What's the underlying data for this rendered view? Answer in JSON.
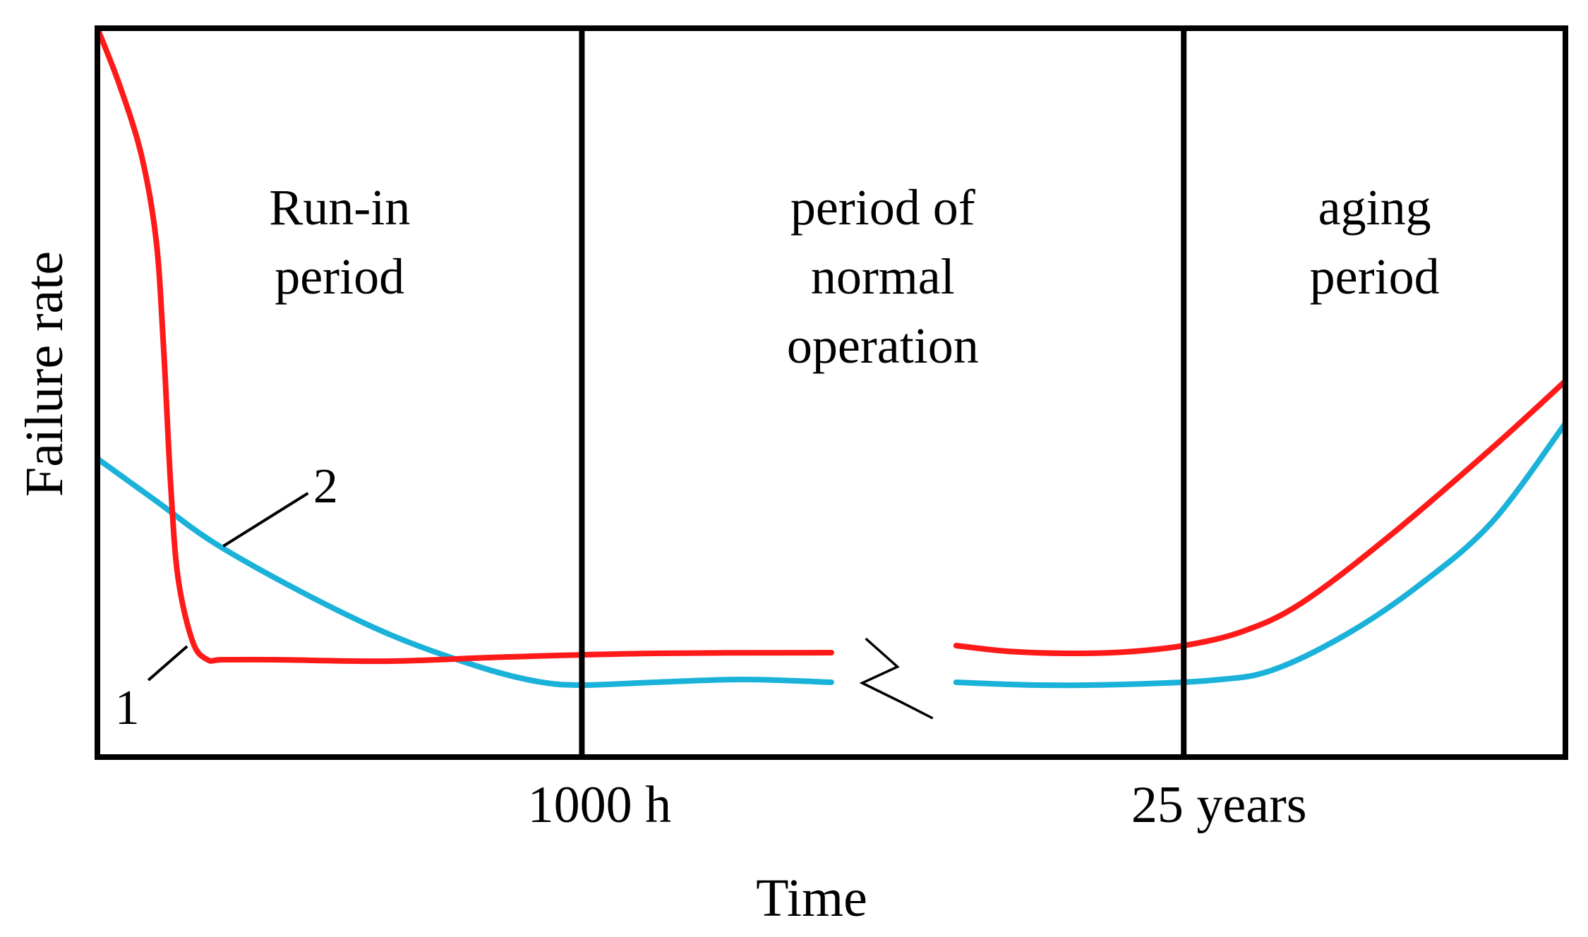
{
  "chart_data": {
    "type": "line",
    "title": "",
    "xlabel": "Time",
    "ylabel": "Failure rate",
    "x_scale": "broken (axis break between 1000 h and 25 years)",
    "xlim": [
      0,
      100
    ],
    "ylim": [
      0,
      100
    ],
    "grid": false,
    "legend": "none; curves labeled directly with numbers",
    "period_boundaries": [
      {
        "label": "1000 h",
        "x": 33
      },
      {
        "label": "25 years",
        "x": 74
      }
    ],
    "periods": [
      {
        "lines": [
          "Run-in",
          "period"
        ]
      },
      {
        "lines": [
          "period of",
          "normal",
          "operation"
        ]
      },
      {
        "lines": [
          "aging",
          "period"
        ]
      }
    ],
    "axis_break_x": [
      50.5,
      58.5
    ],
    "series": [
      {
        "name": "1",
        "color": "#ff1a1a",
        "segments": [
          [
            [
              0,
              100
            ],
            [
              1.5,
              92
            ],
            [
              3,
              82
            ],
            [
              4,
              70
            ],
            [
              4.5,
              55
            ],
            [
              5,
              35
            ],
            [
              5.5,
              22
            ],
            [
              6.5,
              13
            ],
            [
              7.5,
              10.5
            ],
            [
              8.5,
              10.5
            ],
            [
              12,
              10.5
            ],
            [
              20,
              10.3
            ],
            [
              28,
              10.9
            ],
            [
              38,
              11.4
            ],
            [
              50,
              11.5
            ]
          ],
          [
            [
              58.5,
              12.5
            ],
            [
              62,
              11.7
            ],
            [
              66,
              11.4
            ],
            [
              70,
              11.6
            ],
            [
              74,
              12.5
            ],
            [
              78,
              14.5
            ],
            [
              82,
              18.5
            ],
            [
              88,
              28
            ],
            [
              95,
              40.5
            ],
            [
              100,
              50
            ]
          ]
        ]
      },
      {
        "name": "2",
        "color": "#1ab2d9",
        "segments": [
          [
            [
              0,
              39
            ],
            [
              4,
              33
            ],
            [
              8,
              27
            ],
            [
              14,
              20
            ],
            [
              20,
              14
            ],
            [
              26,
              9.5
            ],
            [
              30,
              7.4
            ],
            [
              33,
              6.9
            ],
            [
              38,
              7.3
            ],
            [
              44,
              7.7
            ],
            [
              50,
              7.3
            ]
          ],
          [
            [
              58.5,
              7.3
            ],
            [
              64,
              6.9
            ],
            [
              70,
              7.0
            ],
            [
              76,
              7.6
            ],
            [
              80,
              9
            ],
            [
              85,
              14
            ],
            [
              90,
              21
            ],
            [
              95,
              30
            ],
            [
              100,
              44
            ]
          ]
        ]
      }
    ],
    "curve_labels": [
      {
        "text": "1",
        "series": "1"
      },
      {
        "text": "2",
        "series": "2"
      }
    ]
  }
}
